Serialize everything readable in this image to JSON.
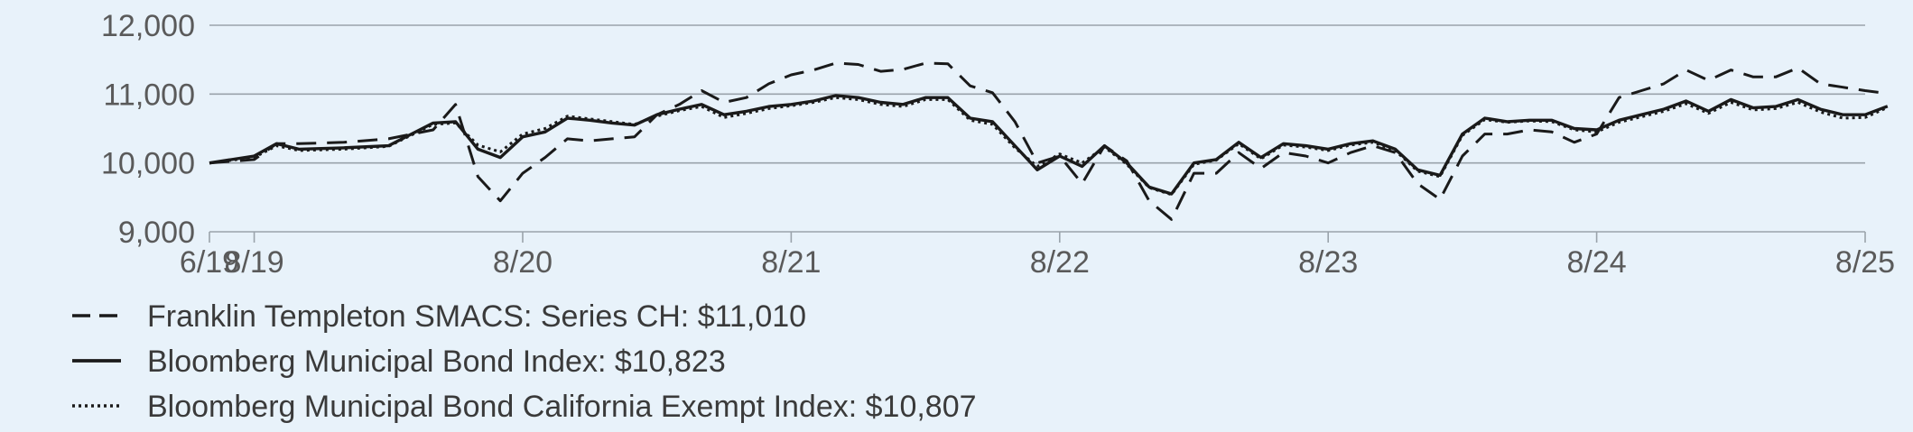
{
  "chart_data": {
    "type": "line",
    "title": "",
    "xlabel": "",
    "ylabel": "",
    "ylim": [
      9000,
      12000
    ],
    "y_ticks": [
      {
        "value": 9000,
        "label": "9,000"
      },
      {
        "value": 10000,
        "label": "10,000"
      },
      {
        "value": 11000,
        "label": "11,000"
      },
      {
        "value": 12000,
        "label": "12,000"
      }
    ],
    "x_range": [
      "2019-06",
      "2025-08"
    ],
    "x_ticks": [
      {
        "date": "2019-06",
        "label": "6/19"
      },
      {
        "date": "2019-08",
        "label": "8/19"
      },
      {
        "date": "2020-08",
        "label": "8/20"
      },
      {
        "date": "2021-08",
        "label": "8/21"
      },
      {
        "date": "2022-08",
        "label": "8/22"
      },
      {
        "date": "2023-08",
        "label": "8/23"
      },
      {
        "date": "2024-08",
        "label": "8/24"
      },
      {
        "date": "2025-08",
        "label": "8/25"
      }
    ],
    "grid": "horizontal",
    "legend_position": "bottom-left",
    "series": [
      {
        "name": "Franklin Templeton SMACS: Series CH: $11,010",
        "style": "dashed",
        "points": [
          [
            "2019-06",
            10000
          ],
          [
            "2019-08",
            10050
          ],
          [
            "2019-09",
            10280
          ],
          [
            "2019-10",
            10280
          ],
          [
            "2019-12",
            10300
          ],
          [
            "2020-02",
            10350
          ],
          [
            "2020-04",
            10480
          ],
          [
            "2020-05",
            10850
          ],
          [
            "2020-06",
            9800
          ],
          [
            "2020-07",
            9450
          ],
          [
            "2020-08",
            9850
          ],
          [
            "2020-09",
            10080
          ],
          [
            "2020-10",
            10350
          ],
          [
            "2020-11",
            10320
          ],
          [
            "2020-12",
            10350
          ],
          [
            "2021-01",
            10380
          ],
          [
            "2021-02",
            10700
          ],
          [
            "2021-03",
            10850
          ],
          [
            "2021-04",
            11050
          ],
          [
            "2021-05",
            10880
          ],
          [
            "2021-06",
            10950
          ],
          [
            "2021-07",
            11150
          ],
          [
            "2021-08",
            11280
          ],
          [
            "2021-09",
            11350
          ],
          [
            "2021-10",
            11450
          ],
          [
            "2021-11",
            11430
          ],
          [
            "2021-12",
            11330
          ],
          [
            "2022-01",
            11360
          ],
          [
            "2022-02",
            11450
          ],
          [
            "2022-03",
            11440
          ],
          [
            "2022-04",
            11120
          ],
          [
            "2022-05",
            11020
          ],
          [
            "2022-06",
            10600
          ],
          [
            "2022-07",
            10000
          ],
          [
            "2022-08",
            10100
          ],
          [
            "2022-09",
            9700
          ],
          [
            "2022-10",
            10250
          ],
          [
            "2022-11",
            10030
          ],
          [
            "2022-12",
            9450
          ],
          [
            "2023-01",
            9180
          ],
          [
            "2023-02",
            9850
          ],
          [
            "2023-03",
            9850
          ],
          [
            "2023-04",
            10150
          ],
          [
            "2023-05",
            9920
          ],
          [
            "2023-06",
            10150
          ],
          [
            "2023-07",
            10100
          ],
          [
            "2023-08",
            10000
          ],
          [
            "2023-09",
            10150
          ],
          [
            "2023-10",
            10250
          ],
          [
            "2023-11",
            10150
          ],
          [
            "2023-12",
            9700
          ],
          [
            "2024-01",
            9470
          ],
          [
            "2024-02",
            10100
          ],
          [
            "2024-03",
            10420
          ],
          [
            "2024-04",
            10420
          ],
          [
            "2024-05",
            10480
          ],
          [
            "2024-06",
            10450
          ],
          [
            "2024-07",
            10300
          ],
          [
            "2024-08",
            10420
          ],
          [
            "2024-09",
            10950
          ],
          [
            "2024-10",
            11050
          ],
          [
            "2024-11",
            11150
          ],
          [
            "2024-12",
            11350
          ],
          [
            "2025-01",
            11200
          ],
          [
            "2025-02",
            11350
          ],
          [
            "2025-03",
            11250
          ],
          [
            "2025-04",
            11250
          ],
          [
            "2025-05",
            11380
          ],
          [
            "2025-06",
            11150
          ],
          [
            "2025-07",
            11100
          ],
          [
            "2025-08",
            11050
          ],
          [
            "2025-09",
            11010
          ]
        ]
      },
      {
        "name": "Bloomberg Municipal Bond Index: $10,823",
        "style": "solid",
        "points": [
          [
            "2019-06",
            10000
          ],
          [
            "2019-08",
            10100
          ],
          [
            "2019-09",
            10280
          ],
          [
            "2019-10",
            10200
          ],
          [
            "2019-12",
            10220
          ],
          [
            "2020-02",
            10250
          ],
          [
            "2020-04",
            10580
          ],
          [
            "2020-05",
            10600
          ],
          [
            "2020-06",
            10200
          ],
          [
            "2020-07",
            10080
          ],
          [
            "2020-08",
            10380
          ],
          [
            "2020-09",
            10450
          ],
          [
            "2020-10",
            10650
          ],
          [
            "2020-11",
            10620
          ],
          [
            "2020-12",
            10580
          ],
          [
            "2021-01",
            10550
          ],
          [
            "2021-02",
            10700
          ],
          [
            "2021-03",
            10780
          ],
          [
            "2021-04",
            10850
          ],
          [
            "2021-05",
            10700
          ],
          [
            "2021-06",
            10750
          ],
          [
            "2021-07",
            10820
          ],
          [
            "2021-08",
            10850
          ],
          [
            "2021-09",
            10900
          ],
          [
            "2021-10",
            10980
          ],
          [
            "2021-11",
            10950
          ],
          [
            "2021-12",
            10880
          ],
          [
            "2022-01",
            10850
          ],
          [
            "2022-02",
            10950
          ],
          [
            "2022-03",
            10950
          ],
          [
            "2022-04",
            10650
          ],
          [
            "2022-05",
            10600
          ],
          [
            "2022-06",
            10250
          ],
          [
            "2022-07",
            9900
          ],
          [
            "2022-08",
            10100
          ],
          [
            "2022-09",
            9950
          ],
          [
            "2022-10",
            10250
          ],
          [
            "2022-11",
            10000
          ],
          [
            "2022-12",
            9650
          ],
          [
            "2023-01",
            9550
          ],
          [
            "2023-02",
            10000
          ],
          [
            "2023-03",
            10050
          ],
          [
            "2023-04",
            10300
          ],
          [
            "2023-05",
            10080
          ],
          [
            "2023-06",
            10280
          ],
          [
            "2023-07",
            10250
          ],
          [
            "2023-08",
            10200
          ],
          [
            "2023-09",
            10280
          ],
          [
            "2023-10",
            10320
          ],
          [
            "2023-11",
            10200
          ],
          [
            "2023-12",
            9900
          ],
          [
            "2024-01",
            9820
          ],
          [
            "2024-02",
            10420
          ],
          [
            "2024-03",
            10650
          ],
          [
            "2024-04",
            10600
          ],
          [
            "2024-05",
            10620
          ],
          [
            "2024-06",
            10620
          ],
          [
            "2024-07",
            10500
          ],
          [
            "2024-08",
            10480
          ],
          [
            "2024-09",
            10620
          ],
          [
            "2024-10",
            10700
          ],
          [
            "2024-11",
            10780
          ],
          [
            "2024-12",
            10900
          ],
          [
            "2025-01",
            10750
          ],
          [
            "2025-02",
            10920
          ],
          [
            "2025-03",
            10800
          ],
          [
            "2025-04",
            10820
          ],
          [
            "2025-05",
            10920
          ],
          [
            "2025-06",
            10780
          ],
          [
            "2025-07",
            10700
          ],
          [
            "2025-08",
            10700
          ],
          [
            "2025-09",
            10823
          ]
        ]
      },
      {
        "name": "Bloomberg Municipal Bond California Exempt Index: $10,807",
        "style": "dotted",
        "points": [
          [
            "2019-06",
            10000
          ],
          [
            "2019-08",
            10080
          ],
          [
            "2019-09",
            10250
          ],
          [
            "2019-10",
            10180
          ],
          [
            "2019-12",
            10200
          ],
          [
            "2020-02",
            10240
          ],
          [
            "2020-04",
            10560
          ],
          [
            "2020-05",
            10580
          ],
          [
            "2020-06",
            10260
          ],
          [
            "2020-07",
            10160
          ],
          [
            "2020-08",
            10420
          ],
          [
            "2020-09",
            10500
          ],
          [
            "2020-10",
            10680
          ],
          [
            "2020-11",
            10640
          ],
          [
            "2020-12",
            10600
          ],
          [
            "2021-01",
            10560
          ],
          [
            "2021-02",
            10680
          ],
          [
            "2021-03",
            10760
          ],
          [
            "2021-04",
            10820
          ],
          [
            "2021-05",
            10660
          ],
          [
            "2021-06",
            10720
          ],
          [
            "2021-07",
            10790
          ],
          [
            "2021-08",
            10830
          ],
          [
            "2021-09",
            10880
          ],
          [
            "2021-10",
            10950
          ],
          [
            "2021-11",
            10920
          ],
          [
            "2021-12",
            10850
          ],
          [
            "2022-01",
            10820
          ],
          [
            "2022-02",
            10920
          ],
          [
            "2022-03",
            10920
          ],
          [
            "2022-04",
            10620
          ],
          [
            "2022-05",
            10560
          ],
          [
            "2022-06",
            10220
          ],
          [
            "2022-07",
            9950
          ],
          [
            "2022-08",
            10130
          ],
          [
            "2022-09",
            10000
          ],
          [
            "2022-10",
            10230
          ],
          [
            "2022-11",
            9980
          ],
          [
            "2022-12",
            9640
          ],
          [
            "2023-01",
            9540
          ],
          [
            "2023-02",
            9980
          ],
          [
            "2023-03",
            10040
          ],
          [
            "2023-04",
            10280
          ],
          [
            "2023-05",
            10060
          ],
          [
            "2023-06",
            10260
          ],
          [
            "2023-07",
            10230
          ],
          [
            "2023-08",
            10180
          ],
          [
            "2023-09",
            10260
          ],
          [
            "2023-10",
            10300
          ],
          [
            "2023-11",
            10180
          ],
          [
            "2023-12",
            9880
          ],
          [
            "2024-01",
            9800
          ],
          [
            "2024-02",
            10400
          ],
          [
            "2024-03",
            10630
          ],
          [
            "2024-04",
            10590
          ],
          [
            "2024-05",
            10610
          ],
          [
            "2024-06",
            10600
          ],
          [
            "2024-07",
            10480
          ],
          [
            "2024-08",
            10450
          ],
          [
            "2024-09",
            10590
          ],
          [
            "2024-10",
            10670
          ],
          [
            "2024-11",
            10750
          ],
          [
            "2024-12",
            10860
          ],
          [
            "2025-01",
            10720
          ],
          [
            "2025-02",
            10880
          ],
          [
            "2025-03",
            10770
          ],
          [
            "2025-04",
            10790
          ],
          [
            "2025-05",
            10880
          ],
          [
            "2025-06",
            10740
          ],
          [
            "2025-07",
            10650
          ],
          [
            "2025-08",
            10660
          ],
          [
            "2025-09",
            10807
          ]
        ]
      }
    ]
  },
  "colors": {
    "background": "#e8f2fa",
    "grid": "#9aa3ab",
    "line": "#1a1a1a",
    "tick_text": "#5a5a5a",
    "legend_text": "#3a3a3a"
  }
}
